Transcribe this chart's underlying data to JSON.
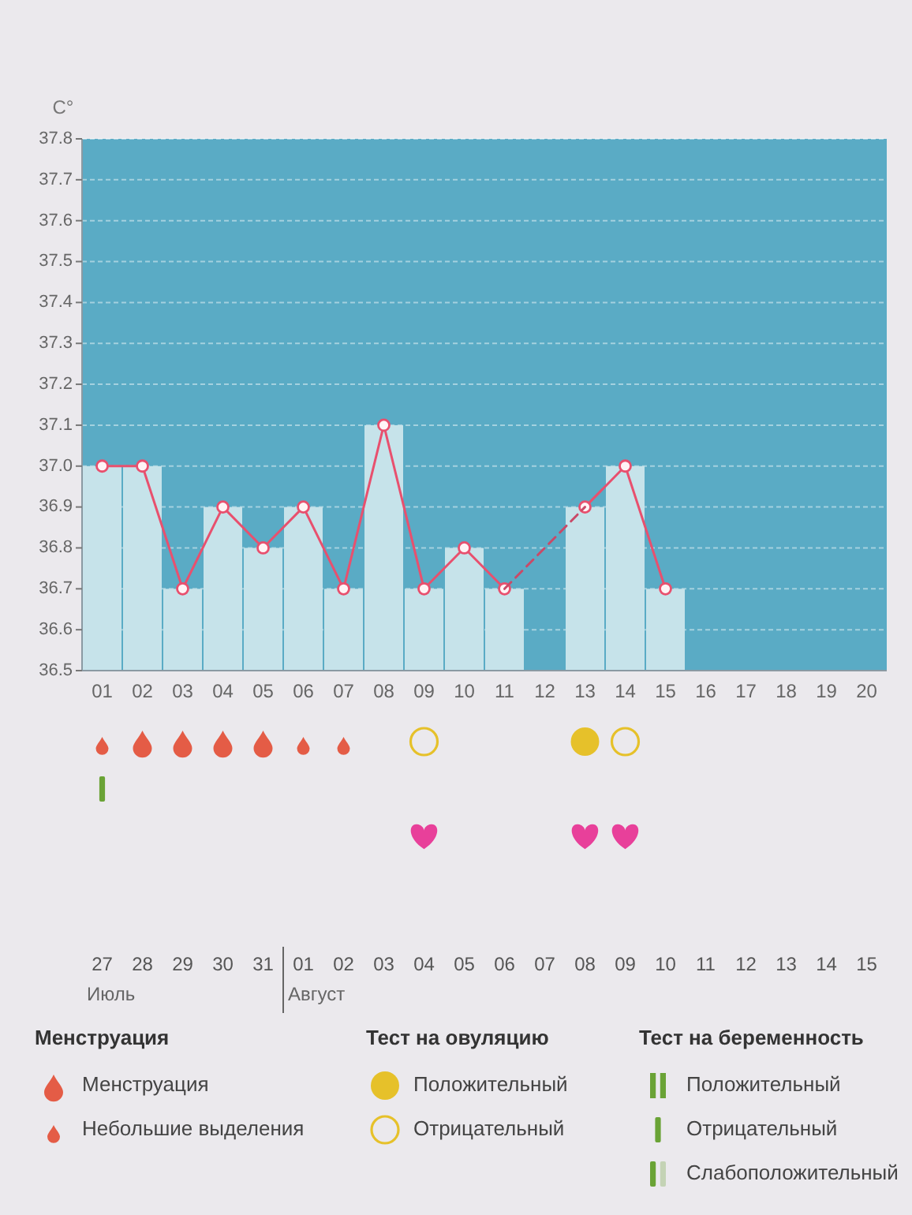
{
  "chart_data": {
    "type": "bar",
    "ylabel": "C°",
    "categories": [
      "01",
      "02",
      "03",
      "04",
      "05",
      "06",
      "07",
      "08",
      "09",
      "10",
      "11",
      "12",
      "13",
      "14",
      "15",
      "16",
      "17",
      "18",
      "19",
      "20"
    ],
    "series": [
      {
        "type": "bar",
        "color": "#c6e3ea",
        "values": [
          37.0,
          37.0,
          36.7,
          36.9,
          36.8,
          36.9,
          36.7,
          37.1,
          36.7,
          36.8,
          36.7,
          null,
          36.9,
          37.0,
          36.7,
          null,
          null,
          null,
          null,
          null
        ]
      },
      {
        "type": "line",
        "color": "#e8506e",
        "marker": "circle",
        "values": [
          37.0,
          37.0,
          36.7,
          36.9,
          36.8,
          36.9,
          36.7,
          37.1,
          36.7,
          36.8,
          36.7,
          null,
          36.9,
          37.0,
          36.7,
          null,
          null,
          null,
          null,
          null
        ]
      },
      {
        "type": "line",
        "color": "#c94a68",
        "marker": "none",
        "line_style": "dashed",
        "x": [
          "11",
          "13"
        ],
        "values": [
          36.7,
          36.9
        ]
      }
    ],
    "ylim": [
      36.5,
      37.8
    ],
    "yticks": [
      36.5,
      36.6,
      36.7,
      36.8,
      36.9,
      {
        "value": 37,
        "label": "37.0"
      },
      37.1,
      37.2,
      37.3,
      37.4,
      37.5,
      37.6,
      37.7,
      37.8
    ],
    "grid": "y",
    "annotations": [
      "27",
      "28",
      "29",
      "30",
      "31",
      "01",
      "02",
      "03",
      "04",
      "05",
      "06",
      "07",
      "08",
      "09",
      "10",
      "11",
      "12",
      "13",
      "14",
      "15",
      "Июль",
      "Август",
      "Менструация",
      "Менструация",
      "Небольшие выделения",
      "Тест на овуляцию",
      "Положительный",
      "Отрицательный",
      "Тест на беременность",
      "Положительный",
      "Отрицательный",
      "Слабоположительный"
    ]
  }
}
